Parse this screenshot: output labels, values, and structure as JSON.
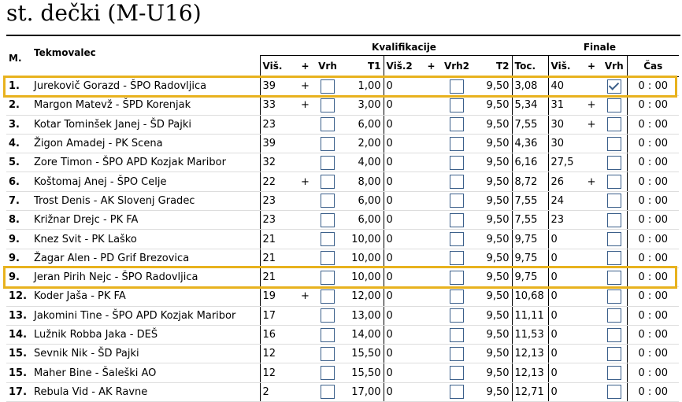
{
  "title": "st. dečki (M-U16)",
  "headers": {
    "rank": "M.",
    "competitor": "Tekmovalec",
    "qualification": "Kvalifikacije",
    "final": "Finale",
    "visina": "Viš.",
    "plus": "+",
    "vrh": "Vrh",
    "t1": "T1",
    "visina2": "Viš.2",
    "plus2": "+",
    "vrh2": "Vrh2",
    "t2": "T2",
    "toc": "Toc.",
    "f_visina": "Viš.",
    "f_plus": "+",
    "f_vrh": "Vrh",
    "cas": "Čas"
  },
  "rows": [
    {
      "rank": "1.",
      "name": "Jurekovič Gorazd - ŠPO Radovljica",
      "v": "39",
      "p": "+",
      "t1": "1,00",
      "v2": "0",
      "p2": "",
      "t2": "9,50",
      "toc": "3,08",
      "fv": "40",
      "fp": "",
      "fvrh": true,
      "cas": "0 : 00"
    },
    {
      "rank": "2.",
      "name": "Margon Matevž - ŠPD Korenjak",
      "v": "33",
      "p": "+",
      "t1": "3,00",
      "v2": "0",
      "p2": "",
      "t2": "9,50",
      "toc": "5,34",
      "fv": "31",
      "fp": "+",
      "fvrh": false,
      "cas": "0 : 00"
    },
    {
      "rank": "3.",
      "name": "Kotar Tominšek Janej - ŠD Pajki",
      "v": "23",
      "p": "",
      "t1": "6,00",
      "v2": "0",
      "p2": "",
      "t2": "9,50",
      "toc": "7,55",
      "fv": "30",
      "fp": "+",
      "fvrh": false,
      "cas": "0 : 00"
    },
    {
      "rank": "4.",
      "name": "Žigon Amadej - PK Scena",
      "v": "39",
      "p": "",
      "t1": "2,00",
      "v2": "0",
      "p2": "",
      "t2": "9,50",
      "toc": "4,36",
      "fv": "30",
      "fp": "",
      "fvrh": false,
      "cas": "0 : 00"
    },
    {
      "rank": "5.",
      "name": "Zore Timon - ŠPO APD Kozjak Maribor",
      "v": "32",
      "p": "",
      "t1": "4,00",
      "v2": "0",
      "p2": "",
      "t2": "9,50",
      "toc": "6,16",
      "fv": "27,5",
      "fp": "",
      "fvrh": false,
      "cas": "0 : 00"
    },
    {
      "rank": "6.",
      "name": "Koštomaj Anej - ŠPO Celje",
      "v": "22",
      "p": "+",
      "t1": "8,00",
      "v2": "0",
      "p2": "",
      "t2": "9,50",
      "toc": "8,72",
      "fv": "26",
      "fp": "+",
      "fvrh": false,
      "cas": "0 : 00"
    },
    {
      "rank": "7.",
      "name": "Trost Denis  - AK Slovenj Gradec",
      "v": "23",
      "p": "",
      "t1": "6,00",
      "v2": "0",
      "p2": "",
      "t2": "9,50",
      "toc": "7,55",
      "fv": "24",
      "fp": "",
      "fvrh": false,
      "cas": "0 : 00"
    },
    {
      "rank": "8.",
      "name": "Križnar Drejc - PK FA",
      "v": "23",
      "p": "",
      "t1": "6,00",
      "v2": "0",
      "p2": "",
      "t2": "9,50",
      "toc": "7,55",
      "fv": "23",
      "fp": "",
      "fvrh": false,
      "cas": "0 : 00"
    },
    {
      "rank": "9.",
      "name": "Knez Svit - PK Laško",
      "v": "21",
      "p": "",
      "t1": "10,00",
      "v2": "0",
      "p2": "",
      "t2": "9,50",
      "toc": "9,75",
      "fv": "0",
      "fp": "",
      "fvrh": false,
      "cas": "0 : 00"
    },
    {
      "rank": "9.",
      "name": "Žagar Alen - PD Grif Brezovica",
      "v": "21",
      "p": "",
      "t1": "10,00",
      "v2": "0",
      "p2": "",
      "t2": "9,50",
      "toc": "9,75",
      "fv": "0",
      "fp": "",
      "fvrh": false,
      "cas": "0 : 00"
    },
    {
      "rank": "9.",
      "name": "Jeran Pirih Nejc - ŠPO Radovljica",
      "v": "21",
      "p": "",
      "t1": "10,00",
      "v2": "0",
      "p2": "",
      "t2": "9,50",
      "toc": "9,75",
      "fv": "0",
      "fp": "",
      "fvrh": false,
      "cas": "0 : 00"
    },
    {
      "rank": "12.",
      "name": "Koder Jaša - PK FA",
      "v": "19",
      "p": "+",
      "t1": "12,00",
      "v2": "0",
      "p2": "",
      "t2": "9,50",
      "toc": "10,68",
      "fv": "0",
      "fp": "",
      "fvrh": false,
      "cas": "0 : 00"
    },
    {
      "rank": "13.",
      "name": "Jakomini Tine - ŠPO APD Kozjak Maribor",
      "v": "17",
      "p": "",
      "t1": "13,00",
      "v2": "0",
      "p2": "",
      "t2": "9,50",
      "toc": "11,11",
      "fv": "0",
      "fp": "",
      "fvrh": false,
      "cas": "0 : 00"
    },
    {
      "rank": "14.",
      "name": "Lužnik Robba Jaka - DEŠ",
      "v": "16",
      "p": "",
      "t1": "14,00",
      "v2": "0",
      "p2": "",
      "t2": "9,50",
      "toc": "11,53",
      "fv": "0",
      "fp": "",
      "fvrh": false,
      "cas": "0 : 00"
    },
    {
      "rank": "15.",
      "name": "Sevnik Nik - ŠD Pajki",
      "v": "12",
      "p": "",
      "t1": "15,50",
      "v2": "0",
      "p2": "",
      "t2": "9,50",
      "toc": "12,13",
      "fv": "0",
      "fp": "",
      "fvrh": false,
      "cas": "0 : 00"
    },
    {
      "rank": "15.",
      "name": "Maher Bine - Šaleški AO",
      "v": "12",
      "p": "",
      "t1": "15,50",
      "v2": "0",
      "p2": "",
      "t2": "9,50",
      "toc": "12,13",
      "fv": "0",
      "fp": "",
      "fvrh": false,
      "cas": "0 : 00"
    },
    {
      "rank": "17.",
      "name": "Rebula Vid - AK Ravne",
      "v": "2",
      "p": "",
      "t1": "17,00",
      "v2": "0",
      "p2": "",
      "t2": "9,50",
      "toc": "12,71",
      "fv": "0",
      "fp": "",
      "fvrh": false,
      "cas": "0 : 00"
    }
  ],
  "highlighted_rows": [
    0,
    10
  ],
  "colors": {
    "highlight": "#e8b21e",
    "checkbox": "#3b5f8a"
  }
}
